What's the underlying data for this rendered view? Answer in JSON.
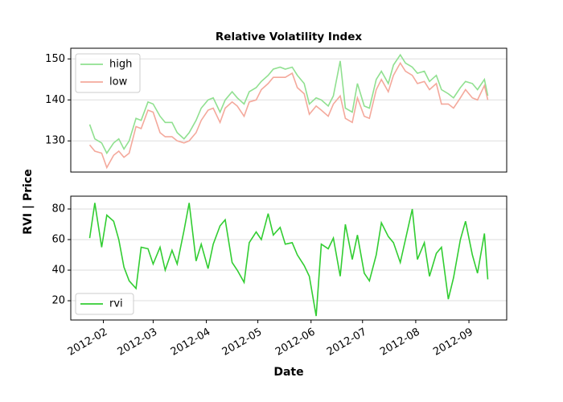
{
  "chart_data": [
    {
      "type": "line",
      "title": "Relative Volatility Index",
      "ylabel": "RVI | Price",
      "legend": "upper left",
      "grid": true,
      "xlim": [
        "2012-01-13",
        "2012-09-23"
      ],
      "ylim": [
        122.4,
        152.6
      ],
      "yticks": [
        130,
        140,
        150
      ],
      "x": [
        "2012-01-24",
        "2012-01-27",
        "2012-01-31",
        "2012-02-03",
        "2012-02-07",
        "2012-02-10",
        "2012-02-13",
        "2012-02-16",
        "2012-02-20",
        "2012-02-23",
        "2012-02-27",
        "2012-03-01",
        "2012-03-05",
        "2012-03-08",
        "2012-03-12",
        "2012-03-15",
        "2012-03-19",
        "2012-03-22",
        "2012-03-26",
        "2012-03-29",
        "2012-04-02",
        "2012-04-05",
        "2012-04-09",
        "2012-04-12",
        "2012-04-16",
        "2012-04-19",
        "2012-04-23",
        "2012-04-26",
        "2012-04-30",
        "2012-05-03",
        "2012-05-07",
        "2012-05-10",
        "2012-05-14",
        "2012-05-17",
        "2012-05-21",
        "2012-05-24",
        "2012-05-28",
        "2012-05-31",
        "2012-06-04",
        "2012-06-07",
        "2012-06-11",
        "2012-06-14",
        "2012-06-18",
        "2012-06-21",
        "2012-06-25",
        "2012-06-28",
        "2012-07-02",
        "2012-07-05",
        "2012-07-09",
        "2012-07-12",
        "2012-07-16",
        "2012-07-19",
        "2012-07-23",
        "2012-07-26",
        "2012-07-30",
        "2012-08-02",
        "2012-08-06",
        "2012-08-09",
        "2012-08-13",
        "2012-08-16",
        "2012-08-20",
        "2012-08-23",
        "2012-08-27",
        "2012-08-30",
        "2012-09-03",
        "2012-09-06",
        "2012-09-10",
        "2012-09-12"
      ],
      "series": [
        {
          "name": "high",
          "color": "#90e090",
          "values": [
            134,
            130.5,
            129.5,
            127,
            129.5,
            130.5,
            128,
            130,
            135.5,
            135,
            139.5,
            139,
            136,
            134.5,
            134.5,
            132,
            130.5,
            132,
            135,
            138,
            140,
            140.5,
            137,
            140,
            142,
            140.5,
            139,
            142,
            143,
            144.5,
            146,
            147.5,
            148,
            147.5,
            148,
            146,
            144,
            139,
            140.5,
            140,
            138.5,
            141,
            149.5,
            138,
            137,
            144,
            138.5,
            138,
            145,
            147,
            144,
            148.5,
            151,
            149,
            148,
            146.5,
            147,
            144.5,
            146,
            142.5,
            141.5,
            140.5,
            143,
            144.5,
            144,
            142.5,
            145,
            141
          ]
        },
        {
          "name": "low",
          "color": "#f4a99c",
          "values": [
            129,
            127.5,
            127,
            123.5,
            126.5,
            127.5,
            126,
            127,
            133.5,
            133,
            137.5,
            137,
            132,
            131,
            131,
            130,
            129.5,
            130,
            132,
            135,
            137.5,
            138,
            134.5,
            138,
            139.5,
            138.5,
            136,
            139.5,
            140,
            142.5,
            144,
            145.5,
            145.5,
            145.5,
            146.5,
            143,
            141.5,
            136.5,
            138.5,
            137.5,
            136,
            139,
            141,
            135.5,
            134.5,
            140.5,
            136,
            135.5,
            142.5,
            145,
            142,
            146,
            149,
            147,
            146,
            144,
            144.5,
            142.5,
            144,
            139,
            139,
            138,
            140.5,
            142.5,
            140.5,
            140,
            143.5,
            140
          ]
        }
      ]
    },
    {
      "type": "line",
      "xlabel": "Date",
      "legend": "lower left",
      "grid": true,
      "xlim": [
        "2012-01-13",
        "2012-09-23"
      ],
      "ylim": [
        7.4,
        88.4
      ],
      "yticks": [
        20,
        40,
        60,
        80
      ],
      "xticks": [
        {
          "value": "2012-02-01",
          "label": "2012-02"
        },
        {
          "value": "2012-03-01",
          "label": "2012-03"
        },
        {
          "value": "2012-04-01",
          "label": "2012-04"
        },
        {
          "value": "2012-05-01",
          "label": "2012-05"
        },
        {
          "value": "2012-06-01",
          "label": "2012-06"
        },
        {
          "value": "2012-07-01",
          "label": "2012-07"
        },
        {
          "value": "2012-08-01",
          "label": "2012-08"
        },
        {
          "value": "2012-09-01",
          "label": "2012-09"
        }
      ],
      "x": [
        "2012-01-24",
        "2012-01-27",
        "2012-01-31",
        "2012-02-03",
        "2012-02-07",
        "2012-02-10",
        "2012-02-13",
        "2012-02-16",
        "2012-02-20",
        "2012-02-23",
        "2012-02-27",
        "2012-03-01",
        "2012-03-05",
        "2012-03-08",
        "2012-03-12",
        "2012-03-15",
        "2012-03-19",
        "2012-03-22",
        "2012-03-26",
        "2012-03-29",
        "2012-04-02",
        "2012-04-05",
        "2012-04-09",
        "2012-04-12",
        "2012-04-16",
        "2012-04-19",
        "2012-04-23",
        "2012-04-26",
        "2012-04-30",
        "2012-05-03",
        "2012-05-07",
        "2012-05-10",
        "2012-05-14",
        "2012-05-17",
        "2012-05-21",
        "2012-05-24",
        "2012-05-28",
        "2012-05-31",
        "2012-06-04",
        "2012-06-07",
        "2012-06-11",
        "2012-06-14",
        "2012-06-18",
        "2012-06-21",
        "2012-06-25",
        "2012-06-28",
        "2012-07-02",
        "2012-07-05",
        "2012-07-09",
        "2012-07-12",
        "2012-07-16",
        "2012-07-19",
        "2012-07-23",
        "2012-07-26",
        "2012-07-30",
        "2012-08-02",
        "2012-08-06",
        "2012-08-09",
        "2012-08-13",
        "2012-08-16",
        "2012-08-20",
        "2012-08-23",
        "2012-08-27",
        "2012-08-30",
        "2012-09-03",
        "2012-09-06",
        "2012-09-10",
        "2012-09-12"
      ],
      "series": [
        {
          "name": "rvi",
          "color": "#32cd32",
          "values": [
            61,
            84,
            55,
            76,
            72,
            60,
            42,
            33,
            28,
            55,
            54,
            44,
            55,
            40,
            53,
            44,
            66,
            84,
            46,
            57,
            41,
            57,
            69,
            73,
            45,
            40,
            32,
            58,
            65,
            60,
            77,
            63,
            68,
            57,
            58,
            50,
            43,
            36,
            10,
            57,
            54,
            61,
            36,
            70,
            47,
            63,
            38,
            33,
            50,
            71,
            62,
            58,
            45,
            60,
            80,
            47,
            58,
            36,
            51,
            55,
            21,
            35,
            60,
            72,
            50,
            38,
            64,
            34
          ]
        }
      ]
    }
  ]
}
